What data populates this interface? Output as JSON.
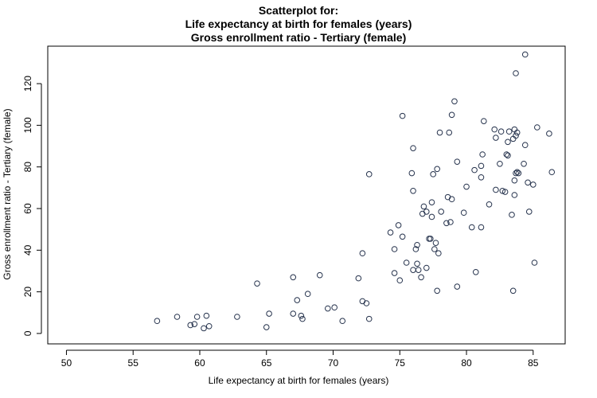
{
  "chart_data": {
    "type": "scatter",
    "title_lines": [
      "Scatterplot for:",
      "Life expectancy at birth for females (years)",
      "Gross enrollment ratio - Tertiary (female)"
    ],
    "xlabel": "Life expectancy at birth for females (years)",
    "ylabel": "Gross enrollment ratio - Tertiary (female)",
    "xlim": [
      48.6,
      87.4
    ],
    "ylim": [
      -5,
      138
    ],
    "x_ticks": [
      50,
      55,
      60,
      65,
      70,
      75,
      80,
      85
    ],
    "y_ticks": [
      0,
      20,
      40,
      60,
      80,
      100,
      120
    ],
    "grid": false,
    "marker": "open-circle",
    "marker_color": "#26334d",
    "points": [
      [
        56.8,
        6
      ],
      [
        58.3,
        8
      ],
      [
        59.3,
        4
      ],
      [
        59.6,
        4.5
      ],
      [
        59.8,
        8
      ],
      [
        60.3,
        2.5
      ],
      [
        60.5,
        8.5
      ],
      [
        60.7,
        3.5
      ],
      [
        62.8,
        8
      ],
      [
        64.3,
        24
      ],
      [
        65.0,
        3
      ],
      [
        65.2,
        9.5
      ],
      [
        67.0,
        27
      ],
      [
        67.0,
        9.5
      ],
      [
        67.3,
        16
      ],
      [
        67.6,
        8.5
      ],
      [
        67.7,
        7
      ],
      [
        68.1,
        19
      ],
      [
        69.0,
        28
      ],
      [
        69.6,
        12
      ],
      [
        70.1,
        12.5
      ],
      [
        70.7,
        6
      ],
      [
        71.9,
        26.5
      ],
      [
        72.2,
        38.5
      ],
      [
        72.2,
        15.5
      ],
      [
        72.5,
        14.5
      ],
      [
        72.7,
        7
      ],
      [
        72.7,
        76.5
      ],
      [
        74.3,
        48.5
      ],
      [
        74.6,
        29
      ],
      [
        74.6,
        40.5
      ],
      [
        74.9,
        52
      ],
      [
        75.0,
        25.5
      ],
      [
        75.2,
        46.5
      ],
      [
        75.2,
        104.5
      ],
      [
        75.5,
        34
      ],
      [
        75.9,
        77
      ],
      [
        76.0,
        89
      ],
      [
        76.0,
        68.5
      ],
      [
        76.0,
        30.5
      ],
      [
        76.2,
        40.5
      ],
      [
        76.3,
        42.5
      ],
      [
        76.3,
        33.5
      ],
      [
        76.4,
        30.5
      ],
      [
        76.6,
        27
      ],
      [
        76.7,
        57.5
      ],
      [
        76.8,
        61
      ],
      [
        77.0,
        58.5
      ],
      [
        77.0,
        31.5
      ],
      [
        77.2,
        45.5
      ],
      [
        77.3,
        45.5
      ],
      [
        77.4,
        63
      ],
      [
        77.4,
        56
      ],
      [
        77.5,
        76.5
      ],
      [
        77.6,
        40.5
      ],
      [
        77.7,
        43.5
      ],
      [
        77.8,
        79
      ],
      [
        77.8,
        20.5
      ],
      [
        77.9,
        38.5
      ],
      [
        78.0,
        96.5
      ],
      [
        78.1,
        58.5
      ],
      [
        78.5,
        53
      ],
      [
        78.6,
        65.5
      ],
      [
        78.7,
        96.5
      ],
      [
        78.8,
        53.5
      ],
      [
        78.9,
        105
      ],
      [
        78.9,
        64.5
      ],
      [
        79.1,
        111.5
      ],
      [
        79.3,
        82.5
      ],
      [
        79.3,
        22.5
      ],
      [
        79.8,
        58
      ],
      [
        80.0,
        70.5
      ],
      [
        80.4,
        51
      ],
      [
        80.6,
        78.5
      ],
      [
        80.7,
        29.5
      ],
      [
        81.1,
        51
      ],
      [
        81.1,
        80.5
      ],
      [
        81.2,
        86
      ],
      [
        81.1,
        75
      ],
      [
        81.3,
        102
      ],
      [
        81.7,
        62
      ],
      [
        82.1,
        98
      ],
      [
        82.2,
        94
      ],
      [
        82.2,
        69
      ],
      [
        82.5,
        81.5
      ],
      [
        82.6,
        97
      ],
      [
        82.7,
        68.5
      ],
      [
        82.9,
        68
      ],
      [
        83.0,
        86
      ],
      [
        83.1,
        85.5
      ],
      [
        83.2,
        97
      ],
      [
        83.1,
        92
      ],
      [
        83.4,
        57
      ],
      [
        83.5,
        93.5
      ],
      [
        83.5,
        20.5
      ],
      [
        83.6,
        73.5
      ],
      [
        83.6,
        66.5
      ],
      [
        83.6,
        98
      ],
      [
        83.7,
        125
      ],
      [
        83.7,
        95
      ],
      [
        83.7,
        77
      ],
      [
        83.8,
        96.5
      ],
      [
        83.8,
        77.5
      ],
      [
        83.9,
        77
      ],
      [
        84.3,
        81.5
      ],
      [
        84.4,
        90.5
      ],
      [
        84.4,
        134
      ],
      [
        84.6,
        72.5
      ],
      [
        84.7,
        58.5
      ],
      [
        85.0,
        71.5
      ],
      [
        85.1,
        34
      ],
      [
        85.3,
        99
      ],
      [
        86.2,
        96
      ],
      [
        86.4,
        77.5
      ]
    ]
  }
}
